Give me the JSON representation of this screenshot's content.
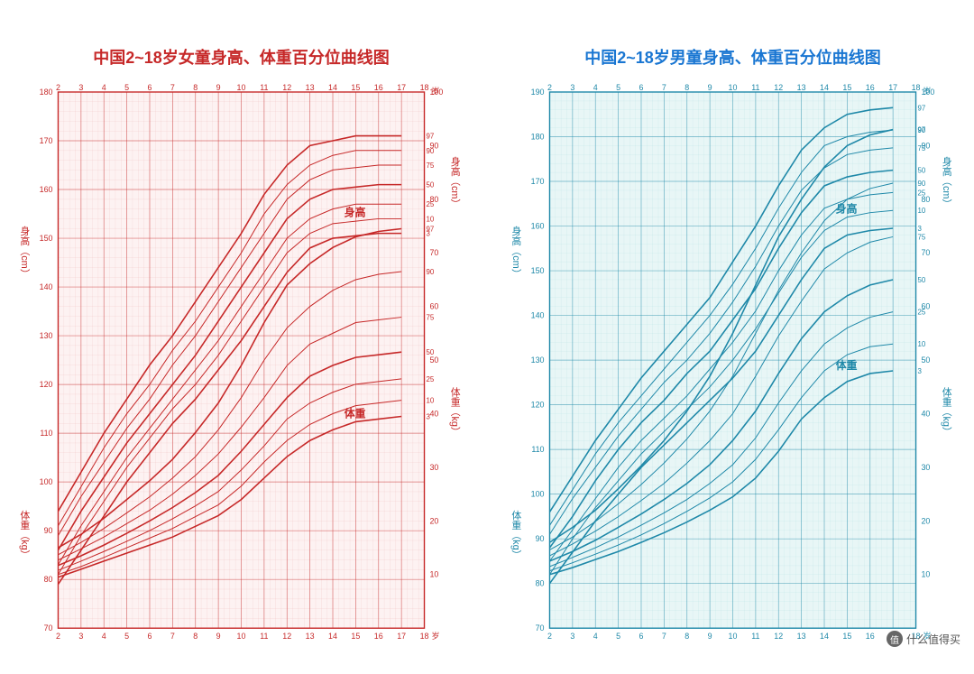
{
  "watermark": {
    "text": "什么值得买",
    "icon": "值"
  },
  "charts": [
    {
      "id": "girls",
      "title": "中国2~18岁女童身高、体重百分位曲线图",
      "title_color": "#c62828",
      "type": "growth-percentile-line",
      "major_color": "#c62828",
      "minor_color": "#e8a5a5",
      "bg_color": "#fdf2f2",
      "x": {
        "min": 2,
        "max": 18,
        "step": 1,
        "unit": "岁"
      },
      "height_axis": {
        "side": "left",
        "label": "身高（cm）",
        "min": 70,
        "max": 180,
        "step": 10
      },
      "weight_axis": {
        "side": "right",
        "label": "体重（kg）",
        "min": 0,
        "max": 100,
        "step": 10
      },
      "section_labels": {
        "height": "身高",
        "weight": "体重"
      },
      "percentile_labels": [
        "97",
        "90",
        "75",
        "50",
        "25",
        "10",
        "3"
      ],
      "height_curves": {
        "p3": [
          79,
          86,
          93,
          100,
          106,
          112,
          117,
          123,
          129,
          136,
          143,
          148,
          150,
          150.5,
          151,
          151
        ],
        "p10": [
          81,
          89,
          96,
          103,
          109,
          115,
          120,
          126,
          133,
          140,
          147,
          151,
          153,
          153.5,
          154,
          154
        ],
        "p25": [
          83,
          91,
          98,
          105,
          111,
          117,
          123,
          129,
          136,
          143,
          150,
          154,
          156,
          157,
          157,
          157
        ],
        "p50": [
          86,
          94,
          101,
          108,
          114,
          120,
          126,
          133,
          140,
          147,
          154,
          158,
          160,
          160.5,
          161,
          161
        ],
        "p75": [
          89,
          97,
          104,
          111,
          117,
          124,
          130,
          137,
          144,
          151,
          158,
          162,
          164,
          164.5,
          165,
          165
        ],
        "p90": [
          91,
          99,
          107,
          114,
          120,
          127,
          133,
          140,
          147,
          155,
          161,
          165,
          167,
          168,
          168,
          168
        ],
        "p97": [
          94,
          102,
          110,
          117,
          124,
          130,
          137,
          144,
          151,
          159,
          165,
          169,
          170,
          171,
          171,
          171
        ]
      },
      "weight_curves": {
        "p3": [
          9.5,
          11,
          12.5,
          14,
          15.5,
          17,
          19,
          21,
          24,
          28,
          32,
          35,
          37,
          38.5,
          39,
          39.5
        ],
        "p10": [
          10,
          11.5,
          13.2,
          15,
          16.8,
          18.6,
          20.8,
          23,
          26.5,
          31,
          35,
          38,
          40,
          41.5,
          42,
          42.5
        ],
        "p25": [
          10.8,
          12.5,
          14.3,
          16.2,
          18.2,
          20.4,
          22.8,
          25.5,
          29.5,
          34,
          39,
          42,
          44,
          45.5,
          46,
          46.5
        ],
        "p50": [
          11.7,
          13.5,
          15.5,
          17.7,
          20,
          22.5,
          25.3,
          28.5,
          33,
          38,
          43,
          47,
          49,
          50.5,
          51,
          51.5
        ],
        "p75": [
          12.7,
          14.8,
          17,
          19.5,
          22,
          25,
          28.5,
          32.5,
          37.5,
          43,
          49,
          53,
          55,
          57,
          57.5,
          58
        ],
        "p90": [
          13.7,
          16,
          18.6,
          21.5,
          24.5,
          28,
          32,
          37,
          43,
          50,
          56,
          60,
          63,
          65,
          66,
          66.5
        ],
        "p97": [
          15,
          17.5,
          20.5,
          24,
          27.5,
          31.5,
          36.5,
          42,
          49,
          57,
          64,
          68,
          71,
          73,
          74,
          74.5
        ]
      }
    },
    {
      "id": "boys",
      "title": "中国2~18岁男童身高、体重百分位曲线图",
      "title_color": "#1976d2",
      "type": "growth-percentile-line",
      "major_color": "#1e88a8",
      "minor_color": "#a0d8dc",
      "bg_color": "#e8f6f6",
      "x": {
        "min": 2,
        "max": 18,
        "step": 1,
        "unit": "岁"
      },
      "height_axis": {
        "side": "left",
        "label": "身高（cm）",
        "min": 70,
        "max": 190,
        "step": 10
      },
      "weight_axis": {
        "side": "right",
        "label": "体重（kg）",
        "min": 0,
        "max": 100,
        "step": 10
      },
      "section_labels": {
        "height": "身高",
        "weight": "体重"
      },
      "percentile_labels": [
        "97",
        "90",
        "75",
        "50",
        "25",
        "10",
        "3"
      ],
      "height_curves": {
        "p3": [
          80,
          87,
          94,
          100,
          106,
          111,
          116,
          121,
          126,
          132,
          140,
          148,
          155,
          158,
          159,
          159.5
        ],
        "p10": [
          82,
          90,
          97,
          103,
          109,
          114,
          119,
          124,
          130,
          137,
          145,
          153,
          159,
          162,
          163,
          163.5
        ],
        "p25": [
          85,
          92,
          99,
          106,
          112,
          117,
          122,
          128,
          134,
          141,
          150,
          158,
          164,
          166,
          167,
          167.5
        ],
        "p50": [
          88,
          95,
          103,
          110,
          116,
          121,
          127,
          132,
          139,
          146,
          155,
          163,
          169,
          171,
          172,
          172.5
        ],
        "p75": [
          91,
          99,
          106,
          113,
          119,
          125,
          130,
          136,
          143,
          151,
          160,
          168,
          173,
          176,
          177,
          177.5
        ],
        "p90": [
          93,
          101,
          109,
          116,
          122,
          128,
          134,
          140,
          147,
          155,
          164,
          172,
          178,
          180,
          181,
          181.5
        ],
        "p97": [
          96,
          104,
          112,
          119,
          126,
          132,
          138,
          144,
          152,
          160,
          169,
          177,
          182,
          185,
          186,
          186.5
        ]
      },
      "weight_curves": {
        "p3": [
          10,
          11.3,
          12.8,
          14.3,
          16,
          17.8,
          19.8,
          22,
          24.5,
          28,
          33,
          39,
          43,
          46,
          47.5,
          48
        ],
        "p10": [
          10.7,
          12.2,
          13.8,
          15.5,
          17.4,
          19.5,
          21.8,
          24.3,
          27.3,
          31.5,
          37,
          43,
          48,
          51,
          52.5,
          53
        ],
        "p25": [
          11.5,
          13.2,
          15,
          17,
          19.2,
          21.5,
          24,
          27,
          30.5,
          35.5,
          42,
          48,
          53,
          56,
          58,
          59
        ],
        "p50": [
          12.5,
          14.3,
          16.4,
          18.8,
          21.3,
          24,
          27,
          30.5,
          35,
          40.5,
          47.5,
          54,
          59,
          62,
          64,
          65
        ],
        "p75": [
          13.5,
          15.7,
          18.1,
          20.8,
          23.8,
          27,
          30.8,
          35,
          40,
          47,
          54.5,
          61,
          67,
          70,
          72,
          73
        ],
        "p90": [
          14.6,
          17,
          19.9,
          23.2,
          26.8,
          30.8,
          35.3,
          40.5,
          47,
          55,
          63,
          70,
          76,
          80,
          82,
          83
        ],
        "p97": [
          16,
          18.8,
          22,
          26,
          30.3,
          35,
          40.5,
          47,
          55,
          64,
          73,
          80,
          86,
          90,
          92,
          93
        ]
      }
    }
  ],
  "style": {
    "title_fontsize": 18,
    "tick_fontsize": 9,
    "curve_width_outer": 1.6,
    "curve_width_inner": 1.0,
    "grid_minor_opacity": 0.35
  }
}
